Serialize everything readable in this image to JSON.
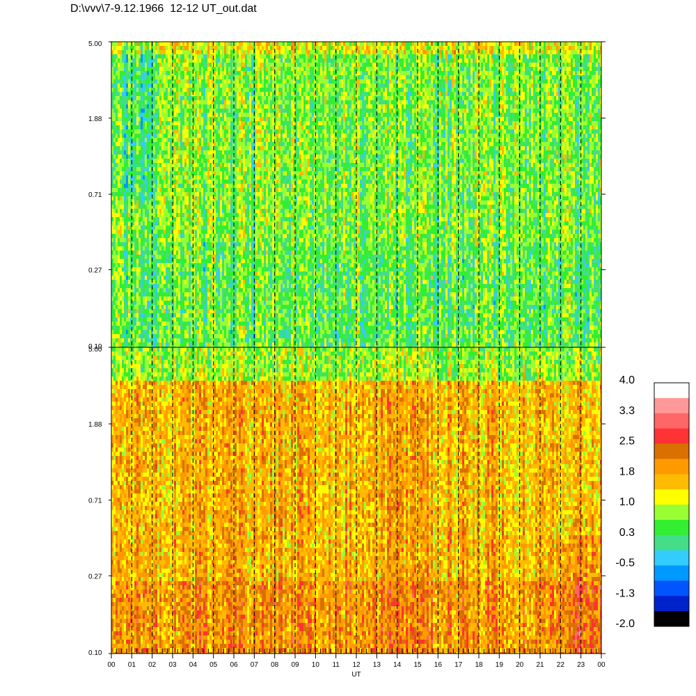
{
  "title": "D:\\vvv\\7-9.12.1966  12-12 UT_out.dat",
  "chart_data": [
    {
      "type": "heatmap",
      "panel": "top",
      "y_tick_labels": [
        "5.00",
        "1.88",
        "0.71",
        "0.27",
        "0.10"
      ],
      "yscale": "log",
      "ylim": [
        0.1,
        5.0
      ],
      "xlim": [
        0,
        24
      ],
      "grid": "vertical dashed lines every hour",
      "dominant_levels": [
        0.3,
        1.0
      ],
      "lower_band_levels": [
        0.3,
        0.65
      ]
    },
    {
      "type": "heatmap",
      "panel": "bottom",
      "y_tick_labels": [
        "5.00",
        "1.88",
        "0.71",
        "0.27",
        "0.10"
      ],
      "yscale": "log",
      "ylim": [
        0.1,
        5.0
      ],
      "xlim": [
        0,
        24
      ],
      "grid": "vertical dashed lines every hour",
      "dominant_levels": [
        1.4,
        2.0
      ],
      "top_band_levels": [
        0.65,
        1.0
      ],
      "x_tick_labels": [
        "00",
        "01",
        "02",
        "03",
        "04",
        "05",
        "06",
        "07",
        "08",
        "09",
        "10",
        "11",
        "12",
        "13",
        "14",
        "15",
        "16",
        "17",
        "18",
        "19",
        "20",
        "21",
        "22",
        "23",
        "00"
      ],
      "xlabel": "UT"
    }
  ],
  "colorbar": {
    "labels": [
      "4.0",
      "3.3",
      "2.5",
      "1.8",
      "1.0",
      "0.3",
      "-0.5",
      "-1.3",
      "-2.0"
    ],
    "colors": [
      "#ffffff",
      "#ff9999",
      "#ff6666",
      "#ff3333",
      "#d97000",
      "#ff9900",
      "#ffbb00",
      "#ffff00",
      "#99ff33",
      "#33ee33",
      "#44dd88",
      "#33ccff",
      "#0099ff",
      "#0055ff",
      "#0022cc",
      "#000000"
    ]
  }
}
